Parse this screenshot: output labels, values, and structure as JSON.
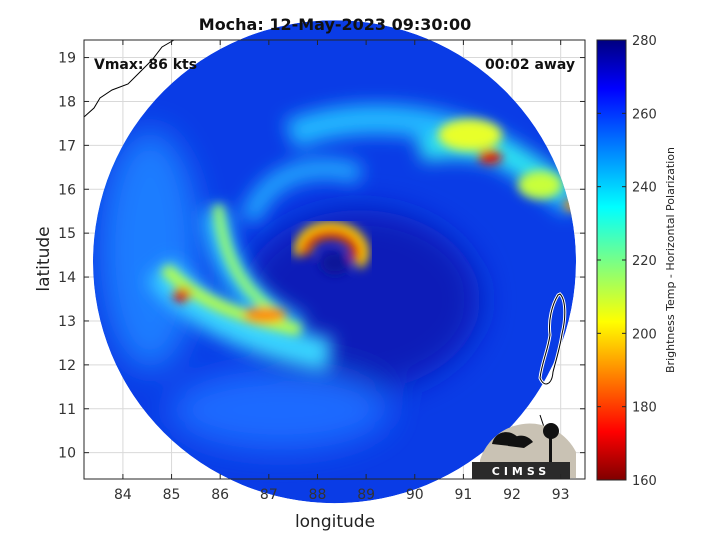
{
  "chart_data": {
    "type": "heatmap",
    "title": "Mocha: 12-May-2023 09:30:00",
    "xlabel": "longitude",
    "ylabel": "latitude",
    "xlim": [
      83.2,
      93.5
    ],
    "ylim": [
      9.4,
      19.4
    ],
    "x_ticks": [
      "84",
      "85",
      "86",
      "87",
      "88",
      "89",
      "90",
      "91",
      "92",
      "93"
    ],
    "y_ticks": [
      "10",
      "11",
      "12",
      "13",
      "14",
      "15",
      "16",
      "17",
      "18",
      "19"
    ],
    "grid": true,
    "annotations": {
      "vmax": "Vmax: 86 kts",
      "time_offset": "00:02 away"
    },
    "colorbar": {
      "label": "Brightness Temp - Horizontal Polarization",
      "min": 160,
      "max": 280,
      "ticks": [
        "160",
        "180",
        "200",
        "220",
        "240",
        "260",
        "280"
      ],
      "colormap": "jet"
    },
    "storm_center": {
      "lon": 88.3,
      "lat": 14.3
    },
    "swath": {
      "center_lon": 88.35,
      "center_lat": 14.35,
      "radius_deg": 5.0
    },
    "logo": "CIMSS"
  }
}
